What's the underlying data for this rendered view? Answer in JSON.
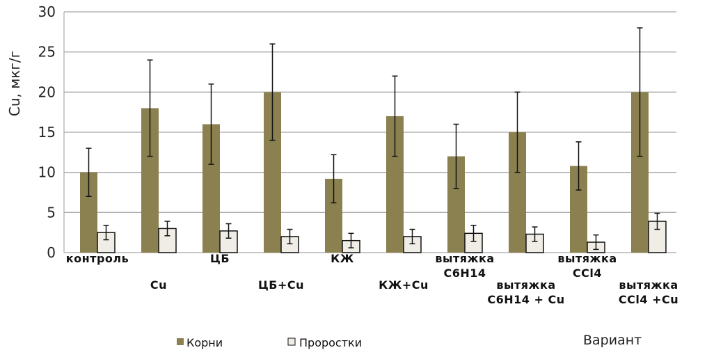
{
  "chart_data": {
    "type": "bar",
    "title": "",
    "xlabel": "Вариант",
    "ylabel": "Cu, мкг/г",
    "ylim": [
      0,
      30
    ],
    "yticks": [
      0,
      5,
      10,
      15,
      20,
      25,
      30
    ],
    "grid": true,
    "legend_position": "bottom",
    "categories": [
      [
        "контроль"
      ],
      [
        "Cu"
      ],
      [
        "ЦБ"
      ],
      [
        "ЦБ+Cu"
      ],
      [
        "КЖ"
      ],
      [
        "КЖ+Cu"
      ],
      [
        "вытяжка",
        "C6H14"
      ],
      [
        "вытяжка",
        "C6H14 + Cu"
      ],
      [
        "вытяжка",
        "CCl4"
      ],
      [
        "вытяжка",
        "CCl4 +Cu"
      ]
    ],
    "series": [
      {
        "name": "Корни",
        "color": "#8b8150",
        "values": [
          10,
          18,
          16,
          20,
          9.2,
          17,
          12,
          15,
          10.8,
          20
        ],
        "errors": [
          3,
          6,
          5,
          6,
          3,
          5,
          4,
          5,
          3,
          8
        ]
      },
      {
        "name": "Проростки",
        "color": "#efede6",
        "values": [
          2.5,
          3.0,
          2.7,
          2.0,
          1.5,
          2.0,
          2.4,
          2.3,
          1.3,
          3.9
        ],
        "errors": [
          0.9,
          0.9,
          0.9,
          0.9,
          0.9,
          0.9,
          1.0,
          0.9,
          0.9,
          1.0
        ]
      }
    ]
  }
}
